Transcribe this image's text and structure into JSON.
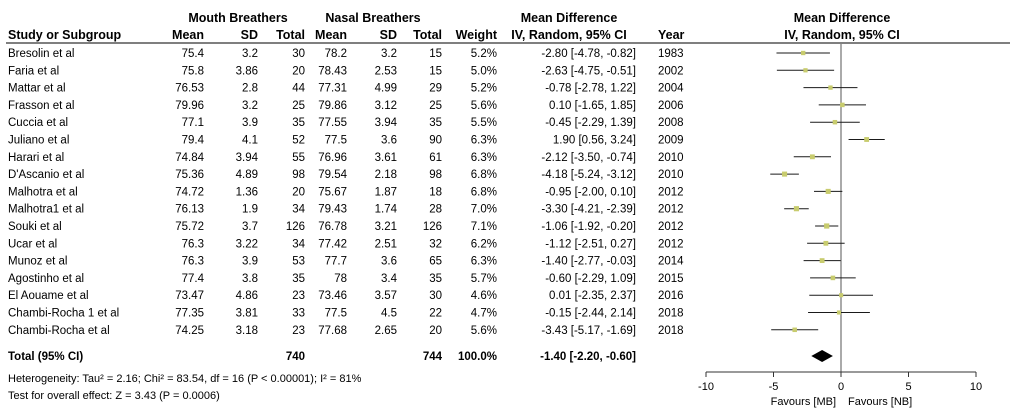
{
  "header": {
    "group1": "Mouth Breathers",
    "group2": "Nasal Breathers",
    "mean_diff_table": "Mean Difference",
    "mean_diff_plot": "Mean Difference",
    "col_study": "Study or Subgroup",
    "col_mean": "Mean",
    "col_sd": "SD",
    "col_total": "Total",
    "col_weight": "Weight",
    "col_method_table": "IV, Random, 95% CI",
    "col_year": "Year",
    "col_method_plot": "IV, Random, 95% CI"
  },
  "total_row": {
    "label": "Total (95% CI)",
    "total1": "740",
    "total2": "744",
    "weight": "100.0%",
    "ci_text": "-1.40 [-2.20, -0.60]"
  },
  "footer": {
    "heterogeneity": "Heterogeneity: Tau² = 2.16; Chi² = 83.54, df = 16 (P < 0.00001); I² = 81%",
    "overall": "Test for overall effect: Z = 3.43 (P = 0.0006)"
  },
  "axis": {
    "favours_left": "Favours [MB]",
    "favours_right": "Favours [NB]"
  },
  "colors": {
    "study_marker": "#c8cc6e",
    "ci_line": "#1a1a1a",
    "summary_diamond": "#000000",
    "rule": "#333333"
  },
  "chart_data": {
    "type": "forest",
    "xlim": [
      -10,
      10
    ],
    "xticks": [
      -10,
      -5,
      0,
      5,
      10
    ],
    "xtick_labels": [
      "-10",
      "-5",
      "0",
      "5",
      "10"
    ],
    "studies": [
      {
        "study": "Bresolin et al",
        "mean1": "75.4",
        "sd1": "3.2",
        "total1": "30",
        "mean2": "78.2",
        "sd2": "3.2",
        "total2": "15",
        "weight": "5.2%",
        "ci_text": "-2.80 [-4.78, -0.82]",
        "year": "1983",
        "md": -2.8,
        "lo": -4.78,
        "hi": -0.82,
        "w": 5.2
      },
      {
        "study": "Faria et al",
        "mean1": "75.8",
        "sd1": "3.86",
        "total1": "20",
        "mean2": "78.43",
        "sd2": "2.53",
        "total2": "15",
        "weight": "5.0%",
        "ci_text": "-2.63 [-4.75, -0.51]",
        "year": "2002",
        "md": -2.63,
        "lo": -4.75,
        "hi": -0.51,
        "w": 5.0
      },
      {
        "study": "Mattar et al",
        "mean1": "76.53",
        "sd1": "2.8",
        "total1": "44",
        "mean2": "77.31",
        "sd2": "4.99",
        "total2": "29",
        "weight": "5.2%",
        "ci_text": "-0.78 [-2.78, 1.22]",
        "year": "2004",
        "md": -0.78,
        "lo": -2.78,
        "hi": 1.22,
        "w": 5.2
      },
      {
        "study": "Frasson et al",
        "mean1": "79.96",
        "sd1": "3.2",
        "total1": "25",
        "mean2": "79.86",
        "sd2": "3.12",
        "total2": "25",
        "weight": "5.6%",
        "ci_text": "0.10 [-1.65, 1.85]",
        "year": "2006",
        "md": 0.1,
        "lo": -1.65,
        "hi": 1.85,
        "w": 5.6
      },
      {
        "study": "Cuccia et al",
        "mean1": "77.1",
        "sd1": "3.9",
        "total1": "35",
        "mean2": "77.55",
        "sd2": "3.94",
        "total2": "35",
        "weight": "5.5%",
        "ci_text": "-0.45 [-2.29, 1.39]",
        "year": "2008",
        "md": -0.45,
        "lo": -2.29,
        "hi": 1.39,
        "w": 5.5
      },
      {
        "study": "Juliano et al",
        "mean1": "79.4",
        "sd1": "4.1",
        "total1": "52",
        "mean2": "77.5",
        "sd2": "3.6",
        "total2": "90",
        "weight": "6.3%",
        "ci_text": "1.90 [0.56, 3.24]",
        "year": "2009",
        "md": 1.9,
        "lo": 0.56,
        "hi": 3.24,
        "w": 6.3
      },
      {
        "study": "Harari et al",
        "mean1": "74.84",
        "sd1": "3.94",
        "total1": "55",
        "mean2": "76.96",
        "sd2": "3.61",
        "total2": "61",
        "weight": "6.3%",
        "ci_text": "-2.12 [-3.50, -0.74]",
        "year": "2010",
        "md": -2.12,
        "lo": -3.5,
        "hi": -0.74,
        "w": 6.3
      },
      {
        "study": "D'Ascanio et al",
        "mean1": "75.36",
        "sd1": "4.89",
        "total1": "98",
        "mean2": "79.54",
        "sd2": "2.18",
        "total2": "98",
        "weight": "6.8%",
        "ci_text": "-4.18 [-5.24, -3.12]",
        "year": "2010",
        "md": -4.18,
        "lo": -5.24,
        "hi": -3.12,
        "w": 6.8
      },
      {
        "study": "Malhotra et al",
        "mean1": "74.72",
        "sd1": "1.36",
        "total1": "20",
        "mean2": "75.67",
        "sd2": "1.87",
        "total2": "18",
        "weight": "6.8%",
        "ci_text": "-0.95 [-2.00, 0.10]",
        "year": "2012",
        "md": -0.95,
        "lo": -2.0,
        "hi": 0.1,
        "w": 6.8
      },
      {
        "study": "Malhotra1 et al",
        "mean1": "76.13",
        "sd1": "1.9",
        "total1": "34",
        "mean2": "79.43",
        "sd2": "1.74",
        "total2": "28",
        "weight": "7.0%",
        "ci_text": "-3.30 [-4.21, -2.39]",
        "year": "2012",
        "md": -3.3,
        "lo": -4.21,
        "hi": -2.39,
        "w": 7.0
      },
      {
        "study": "Souki et al",
        "mean1": "75.72",
        "sd1": "3.7",
        "total1": "126",
        "mean2": "76.78",
        "sd2": "3.21",
        "total2": "126",
        "weight": "7.1%",
        "ci_text": "-1.06 [-1.92, -0.20]",
        "year": "2012",
        "md": -1.06,
        "lo": -1.92,
        "hi": -0.2,
        "w": 7.1
      },
      {
        "study": "Ucar et al",
        "mean1": "76.3",
        "sd1": "3.22",
        "total1": "34",
        "mean2": "77.42",
        "sd2": "2.51",
        "total2": "32",
        "weight": "6.2%",
        "ci_text": "-1.12 [-2.51, 0.27]",
        "year": "2012",
        "md": -1.12,
        "lo": -2.51,
        "hi": 0.27,
        "w": 6.2
      },
      {
        "study": "Munoz et al",
        "mean1": "76.3",
        "sd1": "3.9",
        "total1": "53",
        "mean2": "77.7",
        "sd2": "3.6",
        "total2": "65",
        "weight": "6.3%",
        "ci_text": "-1.40 [-2.77, -0.03]",
        "year": "2014",
        "md": -1.4,
        "lo": -2.77,
        "hi": -0.03,
        "w": 6.3
      },
      {
        "study": "Agostinho et al",
        "mean1": "77.4",
        "sd1": "3.8",
        "total1": "35",
        "mean2": "78",
        "sd2": "3.4",
        "total2": "35",
        "weight": "5.7%",
        "ci_text": "-0.60 [-2.29, 1.09]",
        "year": "2015",
        "md": -0.6,
        "lo": -2.29,
        "hi": 1.09,
        "w": 5.7
      },
      {
        "study": "El Aouame et al",
        "mean1": "73.47",
        "sd1": "4.86",
        "total1": "23",
        "mean2": "73.46",
        "sd2": "3.57",
        "total2": "30",
        "weight": "4.6%",
        "ci_text": "0.01 [-2.35, 2.37]",
        "year": "2016",
        "md": 0.01,
        "lo": -2.35,
        "hi": 2.37,
        "w": 4.6
      },
      {
        "study": "Chambi-Rocha 1 et al",
        "mean1": "77.35",
        "sd1": "3.81",
        "total1": "33",
        "mean2": "77.5",
        "sd2": "4.5",
        "total2": "22",
        "weight": "4.7%",
        "ci_text": "-0.15 [-2.44, 2.14]",
        "year": "2018",
        "md": -0.15,
        "lo": -2.44,
        "hi": 2.14,
        "w": 4.7
      },
      {
        "study": "Chambi-Rocha et al",
        "mean1": "74.25",
        "sd1": "3.18",
        "total1": "23",
        "mean2": "77.68",
        "sd2": "2.65",
        "total2": "20",
        "weight": "5.6%",
        "ci_text": "-3.43 [-5.17, -1.69]",
        "year": "2018",
        "md": -3.43,
        "lo": -5.17,
        "hi": -1.69,
        "w": 5.6
      }
    ],
    "summary": {
      "md": -1.4,
      "lo": -2.2,
      "hi": -0.6
    }
  }
}
